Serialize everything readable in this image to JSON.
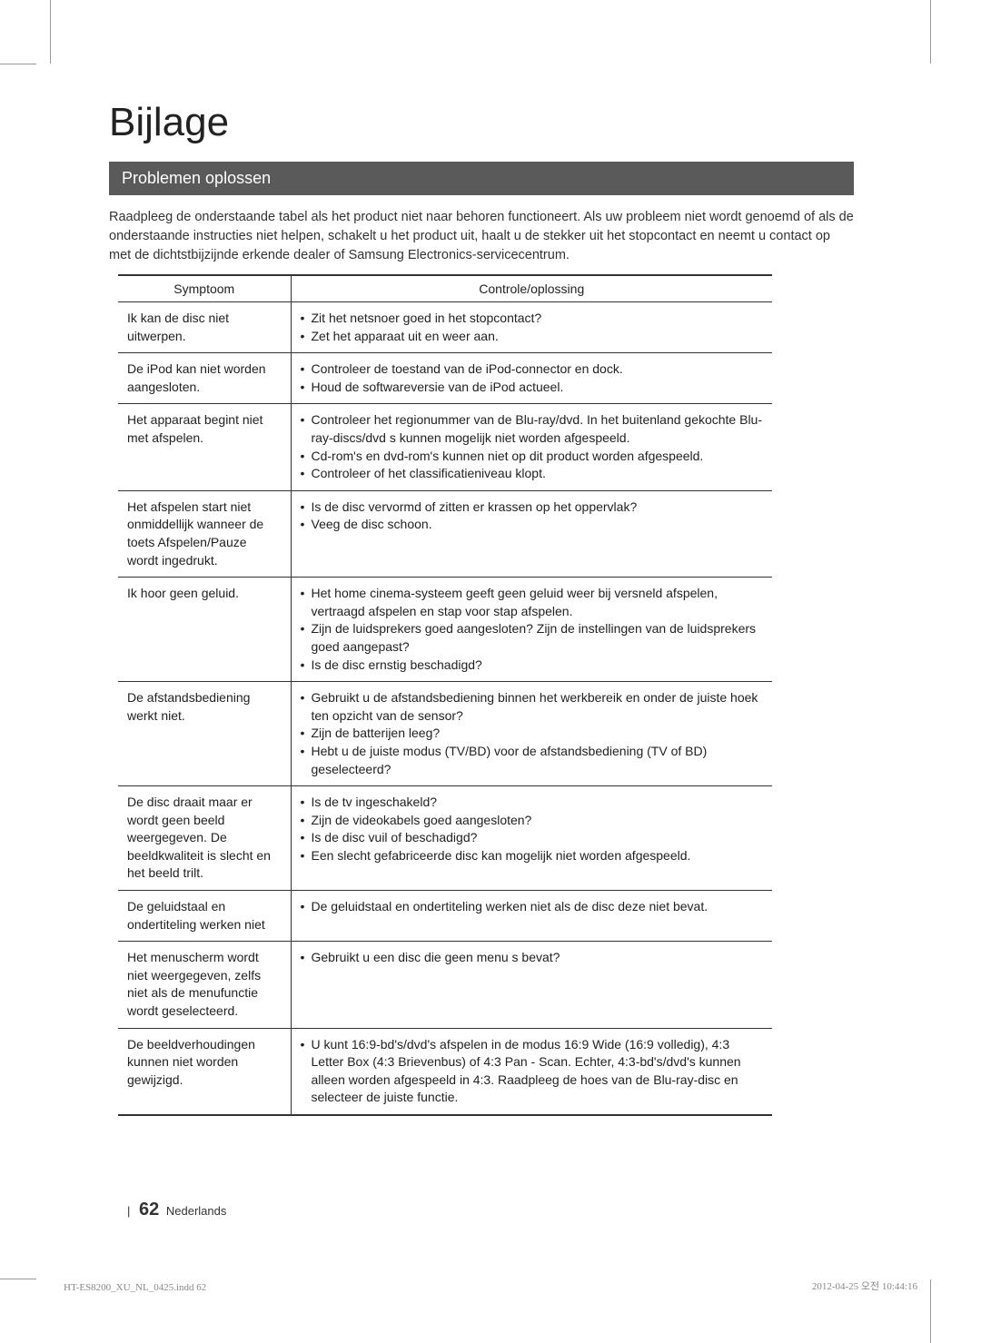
{
  "title": "Bijlage",
  "section_heading": "Problemen oplossen",
  "intro": "Raadpleeg de onderstaande tabel als het product niet naar behoren functioneert. Als uw probleem niet wordt genoemd of als de onderstaande instructies niet helpen, schakelt u het product uit, haalt u de stekker uit het stopcontact en neemt u contact op met de dichtstbijzijnde erkende dealer of Samsung Electronics-servicecentrum.",
  "table": {
    "headers": {
      "symptom": "Symptoom",
      "solution": "Controle/oplossing"
    },
    "rows": [
      {
        "symptom": "Ik kan de disc niet uitwerpen.",
        "solutions": [
          "Zit het netsnoer goed in het stopcontact?",
          "Zet het apparaat uit en weer aan."
        ]
      },
      {
        "symptom": "De iPod kan niet worden aangesloten.",
        "solutions": [
          "Controleer de toestand van de iPod-connector en dock.",
          "Houd de softwareversie van de iPod actueel."
        ]
      },
      {
        "symptom": "Het apparaat begint niet met afspelen.",
        "solutions": [
          "Controleer het regionummer van de Blu-ray/dvd. In het buitenland gekochte Blu-ray-discs/dvd s kunnen mogelijk niet worden afgespeeld.",
          "Cd-rom's en dvd-rom's kunnen niet op dit product worden afgespeeld.",
          "Controleer of het classificatieniveau klopt."
        ]
      },
      {
        "symptom": "Het afspelen start niet onmiddellijk wanneer de toets Afspelen/Pauze wordt ingedrukt.",
        "solutions": [
          "Is de disc vervormd of zitten er krassen op het oppervlak?",
          "Veeg de disc schoon."
        ]
      },
      {
        "symptom": "Ik hoor geen geluid.",
        "solutions": [
          "Het home cinema-systeem geeft geen geluid weer bij versneld afspelen, vertraagd afspelen en stap voor stap afspelen.",
          "Zijn de luidsprekers goed aangesloten? Zijn de instellingen van de luidsprekers goed aangepast?",
          "Is de disc ernstig beschadigd?"
        ]
      },
      {
        "symptom": "De afstandsbediening werkt niet.",
        "solutions": [
          "Gebruikt u de afstandsbediening binnen het werkbereik en onder de juiste hoek ten opzicht van de sensor?",
          "Zijn de batterijen leeg?",
          "Hebt u de juiste modus (TV/BD) voor de afstandsbediening (TV of BD) geselecteerd?"
        ]
      },
      {
        "symptom": "De disc draait maar er wordt geen beeld weergegeven. De beeldkwaliteit is slecht en het beeld trilt.",
        "solutions": [
          "Is de tv ingeschakeld?",
          "Zijn de videokabels goed aangesloten?",
          "Is de disc vuil of beschadigd?",
          "Een slecht gefabriceerde disc kan mogelijk niet worden afgespeeld."
        ]
      },
      {
        "symptom": "De geluidstaal en ondertiteling werken niet",
        "solutions": [
          "De geluidstaal en ondertiteling werken niet als de disc deze niet bevat."
        ]
      },
      {
        "symptom": "Het menuscherm wordt niet weergegeven, zelfs niet als de menufunctie wordt geselecteerd.",
        "solutions": [
          "Gebruikt u een disc die geen menu s bevat?"
        ]
      },
      {
        "symptom": "De beeldverhoudingen kunnen niet worden gewijzigd.",
        "solutions": [
          "U kunt 16:9-bd's/dvd's afspelen in de modus 16:9 Wide (16:9 volledig), 4:3 Letter Box (4:3 Brievenbus) of 4:3 Pan - Scan. Echter, 4:3-bd's/dvd's kunnen alleen worden afgespeeld in 4:3. Raadpleeg de hoes van de Blu-ray-disc en selecteer de juiste functie."
        ]
      }
    ]
  },
  "footer": {
    "page_number": "62",
    "language": "Nederlands"
  },
  "meta": {
    "filename": "HT-ES8200_XU_NL_0425.indd   62",
    "timestamp": "2012-04-25   오전 10:44:16"
  },
  "colors": {
    "section_bar_bg": "#5a5a5a",
    "section_bar_text": "#ffffff",
    "text": "#333333",
    "border": "#333333",
    "meta": "#888888"
  }
}
